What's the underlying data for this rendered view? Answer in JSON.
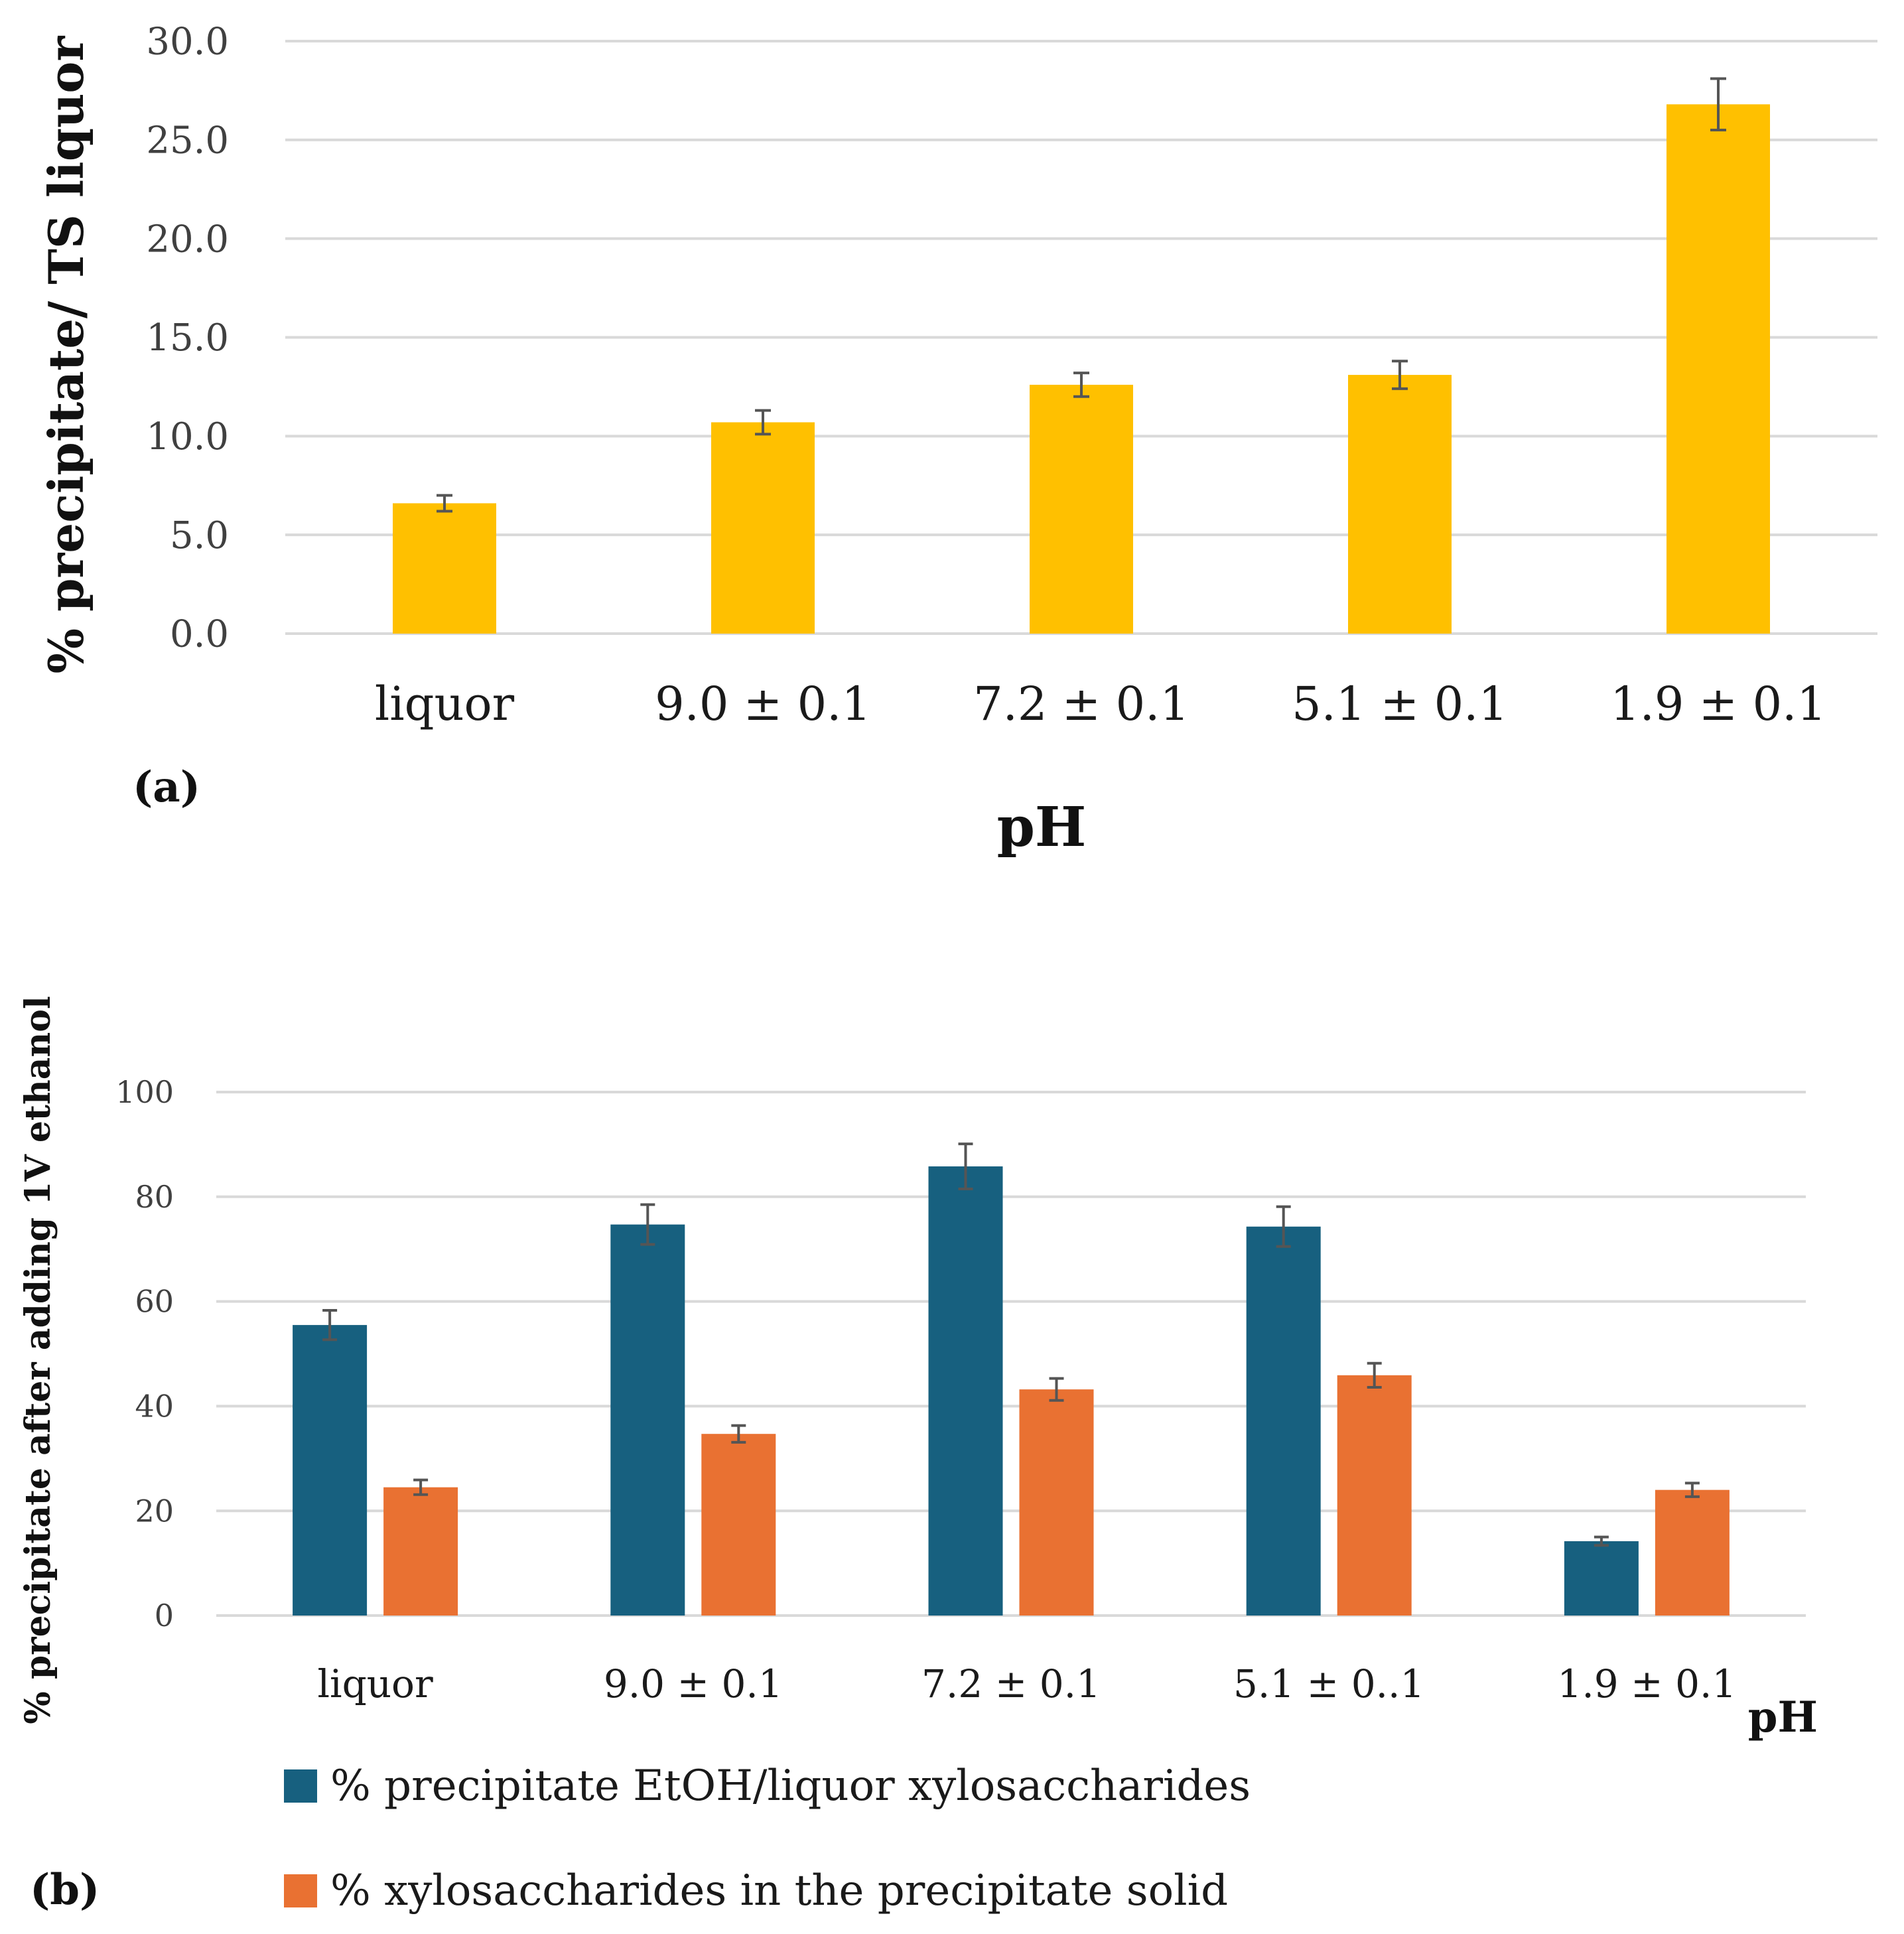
{
  "chart_data": [
    {
      "type": "bar",
      "panel_label": "(a)",
      "title": "",
      "xlabel": "pH",
      "ylabel": "% precipitate/ TS  liquor",
      "ylim": [
        0,
        30
      ],
      "yticks": [
        "0.0",
        "5.0",
        "10.0",
        "15.0",
        "20.0",
        "25.0",
        "30.0"
      ],
      "grid": true,
      "categories": [
        "liquor",
        "9.0 ± 0.1",
        "7.2 ± 0.1",
        "5.1 ± 0.1",
        "1.9 ± 0.1"
      ],
      "series": [
        {
          "name": "% precipitate/ TS liquor",
          "color": "#FFC000",
          "values": [
            6.6,
            10.7,
            12.6,
            13.1,
            26.8
          ],
          "errors": [
            0.4,
            0.6,
            0.6,
            0.7,
            1.3
          ]
        }
      ]
    },
    {
      "type": "bar",
      "panel_label": "(b)",
      "title": "",
      "xlabel": "pH",
      "ylabel": "% precipitate after adding 1V ethanol",
      "ylim": [
        0,
        100
      ],
      "yticks": [
        "0",
        "20",
        "40",
        "60",
        "80",
        "100"
      ],
      "grid": true,
      "legend": "bottom",
      "categories": [
        "liquor",
        "9.0 ± 0.1",
        "7.2 ± 0.1",
        "5.1 ± 0..1",
        "1.9 ± 0.1"
      ],
      "series": [
        {
          "name": "% precipitate EtOH/liquor xylosaccharides",
          "color": "#17607F",
          "values": [
            55.5,
            74.7,
            85.8,
            74.3,
            14.2
          ],
          "errors": [
            2.8,
            3.8,
            4.3,
            3.8,
            0.8
          ]
        },
        {
          "name": "% xylosaccharides in the precipitate solid",
          "color": "#E97132",
          "values": [
            24.5,
            34.7,
            43.2,
            45.9,
            24.0
          ],
          "errors": [
            1.4,
            1.6,
            2.1,
            2.3,
            1.3
          ]
        }
      ]
    }
  ]
}
